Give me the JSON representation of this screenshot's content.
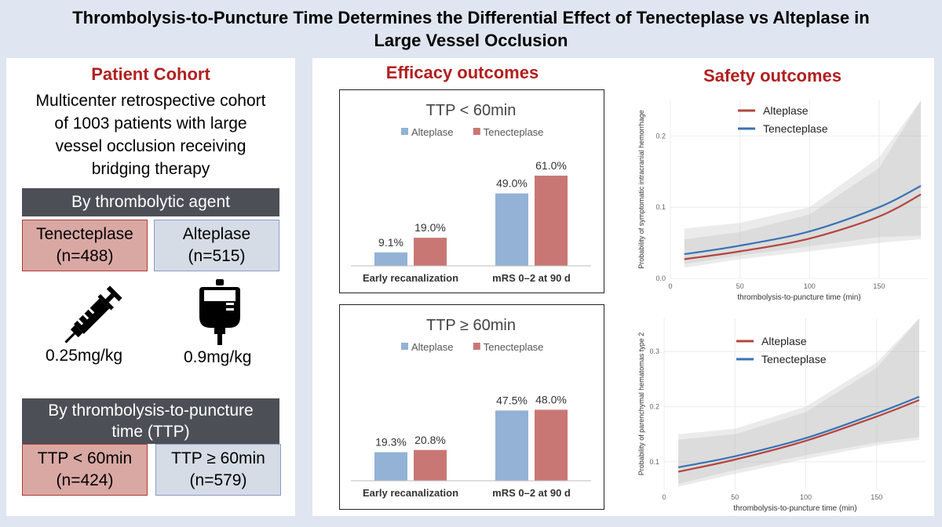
{
  "title_lines": [
    "Thrombolysis-to-Puncture Time Determines the Differential Effect of Tenecteplase vs Alteplase in",
    "Large Vessel Occlusion"
  ],
  "cohort": {
    "heading": "Patient Cohort",
    "description_lines": [
      "Multicenter retrospective cohort",
      "of 1003 patients with large",
      "vessel occlusion receiving",
      "bridging therapy"
    ],
    "by_agent": {
      "label": "By thrombolytic agent",
      "tenecteplase": {
        "name": "Tenecteplase",
        "n": "(n=488)",
        "dose": "0.25mg/kg",
        "icon": "syringe-icon"
      },
      "alteplase": {
        "name": "Alteplase",
        "n": "(n=515)",
        "dose": "0.9mg/kg",
        "icon": "iv-bag-icon"
      }
    },
    "by_ttp": {
      "label_lines": [
        "By thrombolysis-to-puncture",
        "time (TTP)"
      ],
      "lt60": {
        "name": "TTP < 60min",
        "n": "(n=424)"
      },
      "ge60": {
        "name": "TTP ≥ 60min",
        "n": "(n=579)"
      }
    },
    "colors": {
      "tenecteplase_box": "#d9a8a3",
      "alteplase_box": "#d5dce6",
      "dark_bar": "#4c4f56",
      "heading": "#b21f1f"
    }
  },
  "efficacy_heading": "Efficacy outcomes",
  "safety_heading": "Safety outcomes",
  "chart_data": [
    {
      "type": "bar",
      "title": "TTP < 60min",
      "categories": [
        "Early recanalization",
        "mRS 0–2 at 90 d"
      ],
      "series": [
        {
          "name": "Alteplase",
          "values": [
            9.1,
            49.0
          ],
          "labels": [
            "9.1%",
            "49.0%"
          ],
          "color": "#93b2d6"
        },
        {
          "name": "Tenecteplase",
          "values": [
            19.0,
            61.0
          ],
          "labels": [
            "19.0%",
            "61.0%"
          ],
          "color": "#c87774"
        }
      ],
      "ylim": [
        0,
        70
      ],
      "legend": "top"
    },
    {
      "type": "bar",
      "title": "TTP ≥ 60min",
      "categories": [
        "Early recanalization",
        "mRS 0–2 at 90 d"
      ],
      "series": [
        {
          "name": "Alteplase",
          "values": [
            19.3,
            47.5
          ],
          "labels": [
            "19.3%",
            "47.5%"
          ],
          "color": "#93b2d6"
        },
        {
          "name": "Tenecteplase",
          "values": [
            20.8,
            48.0
          ],
          "labels": [
            "20.8%",
            "48.0%"
          ],
          "color": "#c87774"
        }
      ],
      "ylim": [
        0,
        70
      ],
      "legend": "top"
    },
    {
      "type": "line",
      "xlabel": "thrombolysis-to-puncture time (min)",
      "ylabel": "Probability of symptomatic intracranial hemorrhage",
      "xlim": [
        0,
        185
      ],
      "ylim": [
        0,
        0.25
      ],
      "xticks": [
        0,
        50,
        100,
        150
      ],
      "yticks": [
        0.0,
        0.1,
        0.2
      ],
      "ytick_labels": [
        "0.0",
        "0.1",
        "0.2"
      ],
      "grid": true,
      "legend": "top-left",
      "series": [
        {
          "name": "Alteplase",
          "color": "#b5443f",
          "x": [
            10,
            50,
            100,
            150,
            180
          ],
          "y": [
            0.027,
            0.038,
            0.056,
            0.087,
            0.118
          ],
          "band_lower": [
            0.015,
            0.027,
            0.038,
            0.05,
            0.055
          ],
          "band_upper": [
            0.055,
            0.065,
            0.09,
            0.155,
            0.25
          ]
        },
        {
          "name": "Tenecteplase",
          "color": "#3a72b5",
          "x": [
            10,
            50,
            100,
            150,
            180
          ],
          "y": [
            0.034,
            0.046,
            0.066,
            0.1,
            0.13
          ],
          "band_lower": [
            0.02,
            0.032,
            0.045,
            0.058,
            0.06
          ],
          "band_upper": [
            0.07,
            0.078,
            0.1,
            0.17,
            0.26
          ]
        }
      ]
    },
    {
      "type": "line",
      "xlabel": "thrombolysis-to-puncture time (min)",
      "ylabel": "Probability of parenchymal hematomas type 2",
      "xlim": [
        0,
        185
      ],
      "ylim": [
        0.05,
        0.36
      ],
      "xticks": [
        0,
        50,
        100,
        150
      ],
      "yticks": [
        0.1,
        0.2,
        0.3
      ],
      "ytick_labels": [
        "0.1",
        "0.2",
        "0.3"
      ],
      "grid": true,
      "legend": "top-center",
      "series": [
        {
          "name": "Alteplase",
          "color": "#b5443f",
          "x": [
            10,
            50,
            100,
            150,
            180
          ],
          "y": [
            0.082,
            0.104,
            0.138,
            0.182,
            0.212
          ],
          "band_lower": [
            0.055,
            0.078,
            0.105,
            0.13,
            0.14
          ],
          "band_upper": [
            0.14,
            0.15,
            0.19,
            0.27,
            0.37
          ]
        },
        {
          "name": "Tenecteplase",
          "color": "#3a72b5",
          "x": [
            10,
            50,
            100,
            150,
            180
          ],
          "y": [
            0.09,
            0.11,
            0.143,
            0.188,
            0.218
          ],
          "band_lower": [
            0.06,
            0.085,
            0.112,
            0.135,
            0.145
          ],
          "band_upper": [
            0.15,
            0.16,
            0.2,
            0.28,
            0.38
          ]
        }
      ]
    }
  ]
}
